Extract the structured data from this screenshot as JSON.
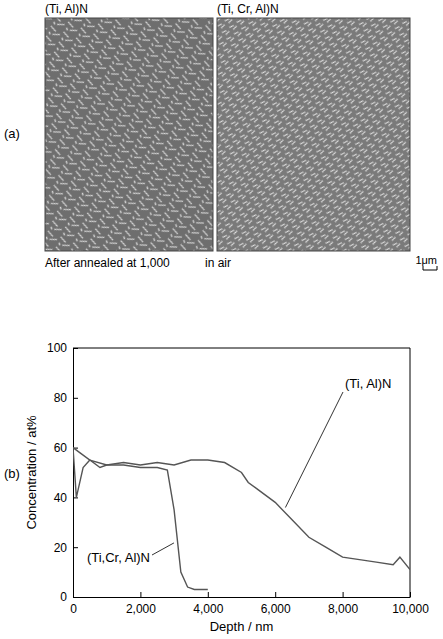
{
  "images": {
    "label": "(a)",
    "panels": [
      {
        "title": "(Ti, Al)N"
      },
      {
        "title": "(Ti, Cr, Al)N"
      }
    ],
    "caption": [
      "After annealed at 1,000",
      "in air"
    ],
    "scale_bar": "1μm"
  },
  "chart_data": {
    "type": "line",
    "panel_label": "(b)",
    "x_label": "Depth / nm",
    "y_label": "Concentration / at%",
    "xlim": [
      0,
      10000
    ],
    "ylim": [
      0,
      100
    ],
    "xticks": [
      0,
      {
        "value": 2000,
        "label": "2,000"
      },
      {
        "value": 4000,
        "label": "4,000"
      },
      {
        "value": 6000,
        "label": "6,000"
      },
      {
        "value": 8000,
        "label": "8,000"
      },
      {
        "value": 10000,
        "label": "10,000"
      }
    ],
    "yticks": [
      0,
      20,
      40,
      60,
      80,
      100
    ],
    "series": [
      {
        "name": "(Ti, Al)N",
        "color": "#555555",
        "x": [
          0,
          200,
          500,
          1000,
          1500,
          2000,
          2500,
          3000,
          3500,
          4000,
          4500,
          5000,
          5200,
          5500,
          6000,
          6500,
          7000,
          7500,
          8000,
          8500,
          9000,
          9500,
          9700,
          10000
        ],
        "values": [
          60,
          58,
          55,
          53,
          54,
          53,
          54,
          53,
          55,
          55,
          54,
          50,
          46,
          43,
          38,
          31,
          24,
          20,
          16,
          15,
          14,
          13,
          16,
          11
        ]
      },
      {
        "name": "(Ti,Cr, Al)N",
        "color": "#555555",
        "x": [
          0,
          100,
          300,
          500,
          800,
          1000,
          1500,
          2000,
          2500,
          2800,
          3000,
          3200,
          3400,
          3600,
          4000
        ],
        "values": [
          60,
          40,
          52,
          55,
          52,
          53,
          53,
          52,
          52,
          51,
          35,
          10,
          4,
          3,
          3
        ]
      }
    ]
  }
}
